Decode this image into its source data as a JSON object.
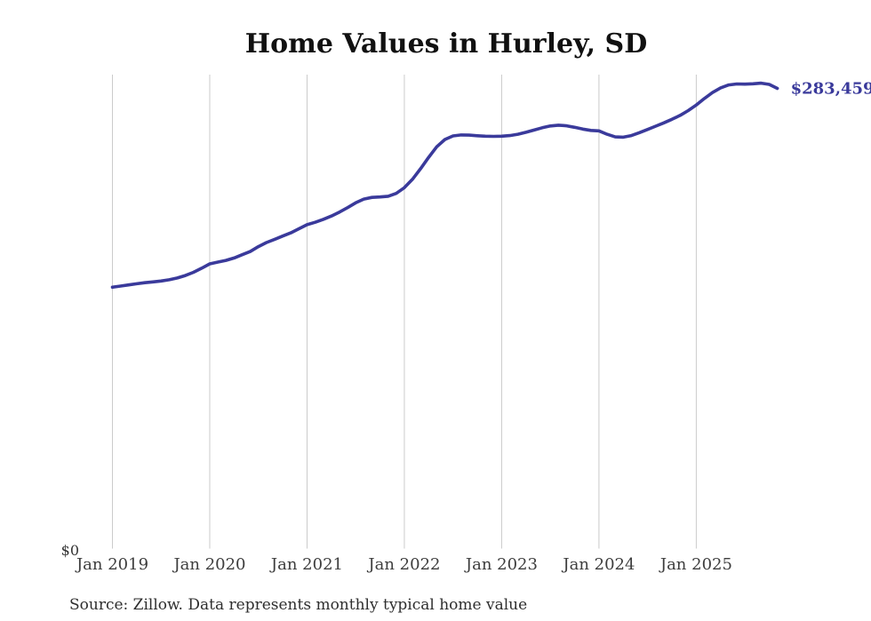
{
  "chart_data": {
    "type": "line",
    "title": "Home Values in Hurley, SD",
    "xlabel": "",
    "ylabel": "",
    "x_start": "Jan 2019",
    "x_interval": "monthly",
    "x_tick_labels": [
      "Jan 2019",
      "Jan 2020",
      "Jan 2021",
      "Jan 2022",
      "Jan 2023",
      "Jan 2024",
      "Jan 2025"
    ],
    "y_zero_label": "$0",
    "ylim": [
      0,
      292000
    ],
    "grid": "vertical-only",
    "legend": "none",
    "line_color": "#3a3a9b",
    "grid_color": "#cbcbcb",
    "latest_value": 283459,
    "latest_value_label": "$283,459",
    "series_name": "Typical home value",
    "values": [
      161000,
      161700,
      162400,
      163100,
      163800,
      164300,
      164800,
      165600,
      166700,
      168200,
      170200,
      172700,
      175400,
      176500,
      177500,
      179000,
      181000,
      183000,
      186000,
      188500,
      190500,
      192500,
      194500,
      197000,
      199500,
      201000,
      202800,
      204800,
      207300,
      210000,
      213000,
      215300,
      216300,
      216600,
      217000,
      218800,
      222300,
      227500,
      234000,
      241000,
      247500,
      252000,
      254200,
      254800,
      254700,
      254300,
      254000,
      253900,
      254000,
      254400,
      255200,
      256400,
      257800,
      259200,
      260300,
      260800,
      260400,
      259500,
      258400,
      257600,
      257300,
      255200,
      253600,
      253400,
      254400,
      256200,
      258200,
      260200,
      262200,
      264400,
      266800,
      269800,
      273200,
      277200,
      280900,
      283800,
      285600,
      286200,
      286100,
      286300,
      286700,
      285900,
      283459
    ]
  },
  "footer": {
    "source_note": "Source: Zillow. Data represents monthly typical home value"
  }
}
